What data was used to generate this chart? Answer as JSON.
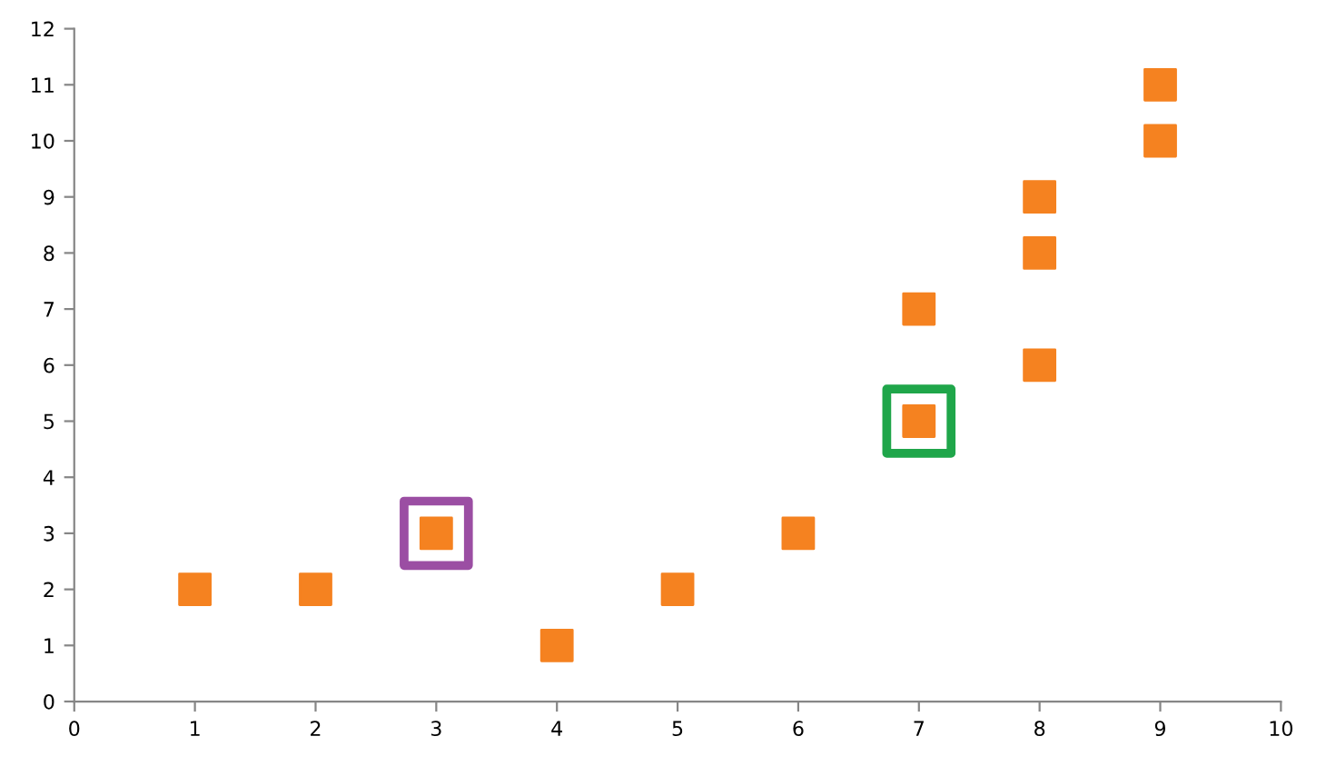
{
  "chart_data": {
    "type": "scatter",
    "marker": "square",
    "grid": false,
    "legend": false,
    "xlim": [
      0,
      10
    ],
    "xticks": [
      0,
      1,
      2,
      3,
      4,
      5,
      6,
      7,
      8,
      9,
      10
    ],
    "ylim": [
      0,
      12
    ],
    "yticks": [
      0,
      1,
      2,
      3,
      4,
      5,
      6,
      7,
      8,
      9,
      10,
      11,
      12
    ],
    "series": [
      {
        "color": "#f58220",
        "x": [
          1,
          2,
          3,
          4,
          5,
          6,
          7,
          7,
          8,
          8,
          8,
          9,
          9
        ],
        "values": [
          2,
          2,
          3,
          1,
          2,
          3,
          7,
          5,
          9,
          8,
          6,
          11,
          10
        ]
      },
      {
        "color": "#9b4ea3",
        "x": [
          3
        ],
        "values": [
          3
        ]
      },
      {
        "color": "#1fa64a",
        "x": [
          7
        ],
        "values": [
          5
        ]
      }
    ]
  }
}
